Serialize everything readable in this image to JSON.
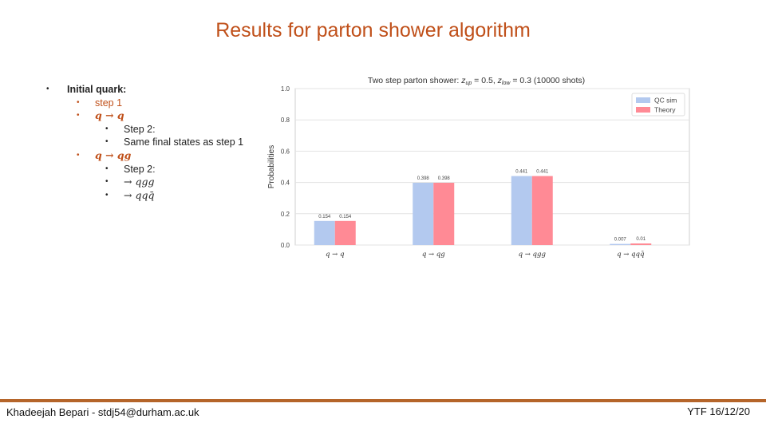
{
  "slide": {
    "title": "Results for parton shower algorithm",
    "bullets": [
      {
        "level": 0,
        "text": "Initial quark:",
        "style": "text"
      },
      {
        "level": 1,
        "text": "step 1",
        "style": "text"
      },
      {
        "level": 1,
        "text": "q → q",
        "style": "math"
      },
      {
        "level": 2,
        "text": "Step 2:",
        "style": "text"
      },
      {
        "level": 2,
        "text": "Same final states as step 1",
        "style": "text"
      },
      {
        "level": 1,
        "text": "q → qg",
        "style": "math"
      },
      {
        "level": 2,
        "text": "Step 2:",
        "style": "text"
      },
      {
        "level": 2,
        "text": "→ qgg",
        "style": "math2"
      },
      {
        "level": 2,
        "text": "→ qqq̄",
        "style": "math2"
      }
    ],
    "footer_left": "Khadeejah Bepari - stdj54@durham.ac.uk",
    "footer_right": "YTF 16/12/20",
    "accent_color": "#c0501a",
    "footer_line_color": "#b5652a"
  },
  "chart_data": {
    "type": "bar",
    "title": "Two step parton shower: z_up = 0.5, z_low = 0.3 (10000 shots)",
    "title_parts": {
      "prefix": "Two step parton shower: ",
      "z1": "z",
      "z1_sub": "up",
      "eq1": " = 0.5, ",
      "z2": "z",
      "z2_sub": "low",
      "eq2": " = 0.3 (10000 shots)"
    },
    "ylabel": "Probabilities",
    "xlabel": "",
    "ylim": [
      0.0,
      1.0
    ],
    "yticks": [
      "0.0",
      "0.2",
      "0.4",
      "0.6",
      "0.8",
      "1.0"
    ],
    "categories": [
      "q → q",
      "q → qg",
      "q → qgg",
      "q → qqq̄"
    ],
    "series": [
      {
        "name": "QC sim",
        "values": [
          0.154,
          0.398,
          0.441,
          0.007
        ],
        "labels": [
          "0.154",
          "0.398",
          "0.441",
          "0.007"
        ],
        "color": "#b3c9ef"
      },
      {
        "name": "Theory",
        "values": [
          0.154,
          0.398,
          0.441,
          0.01
        ],
        "labels": [
          "0.154",
          "0.398",
          "0.441",
          "0.01"
        ],
        "color": "#ff8a95"
      }
    ],
    "grid": true,
    "legend": "top-right"
  }
}
